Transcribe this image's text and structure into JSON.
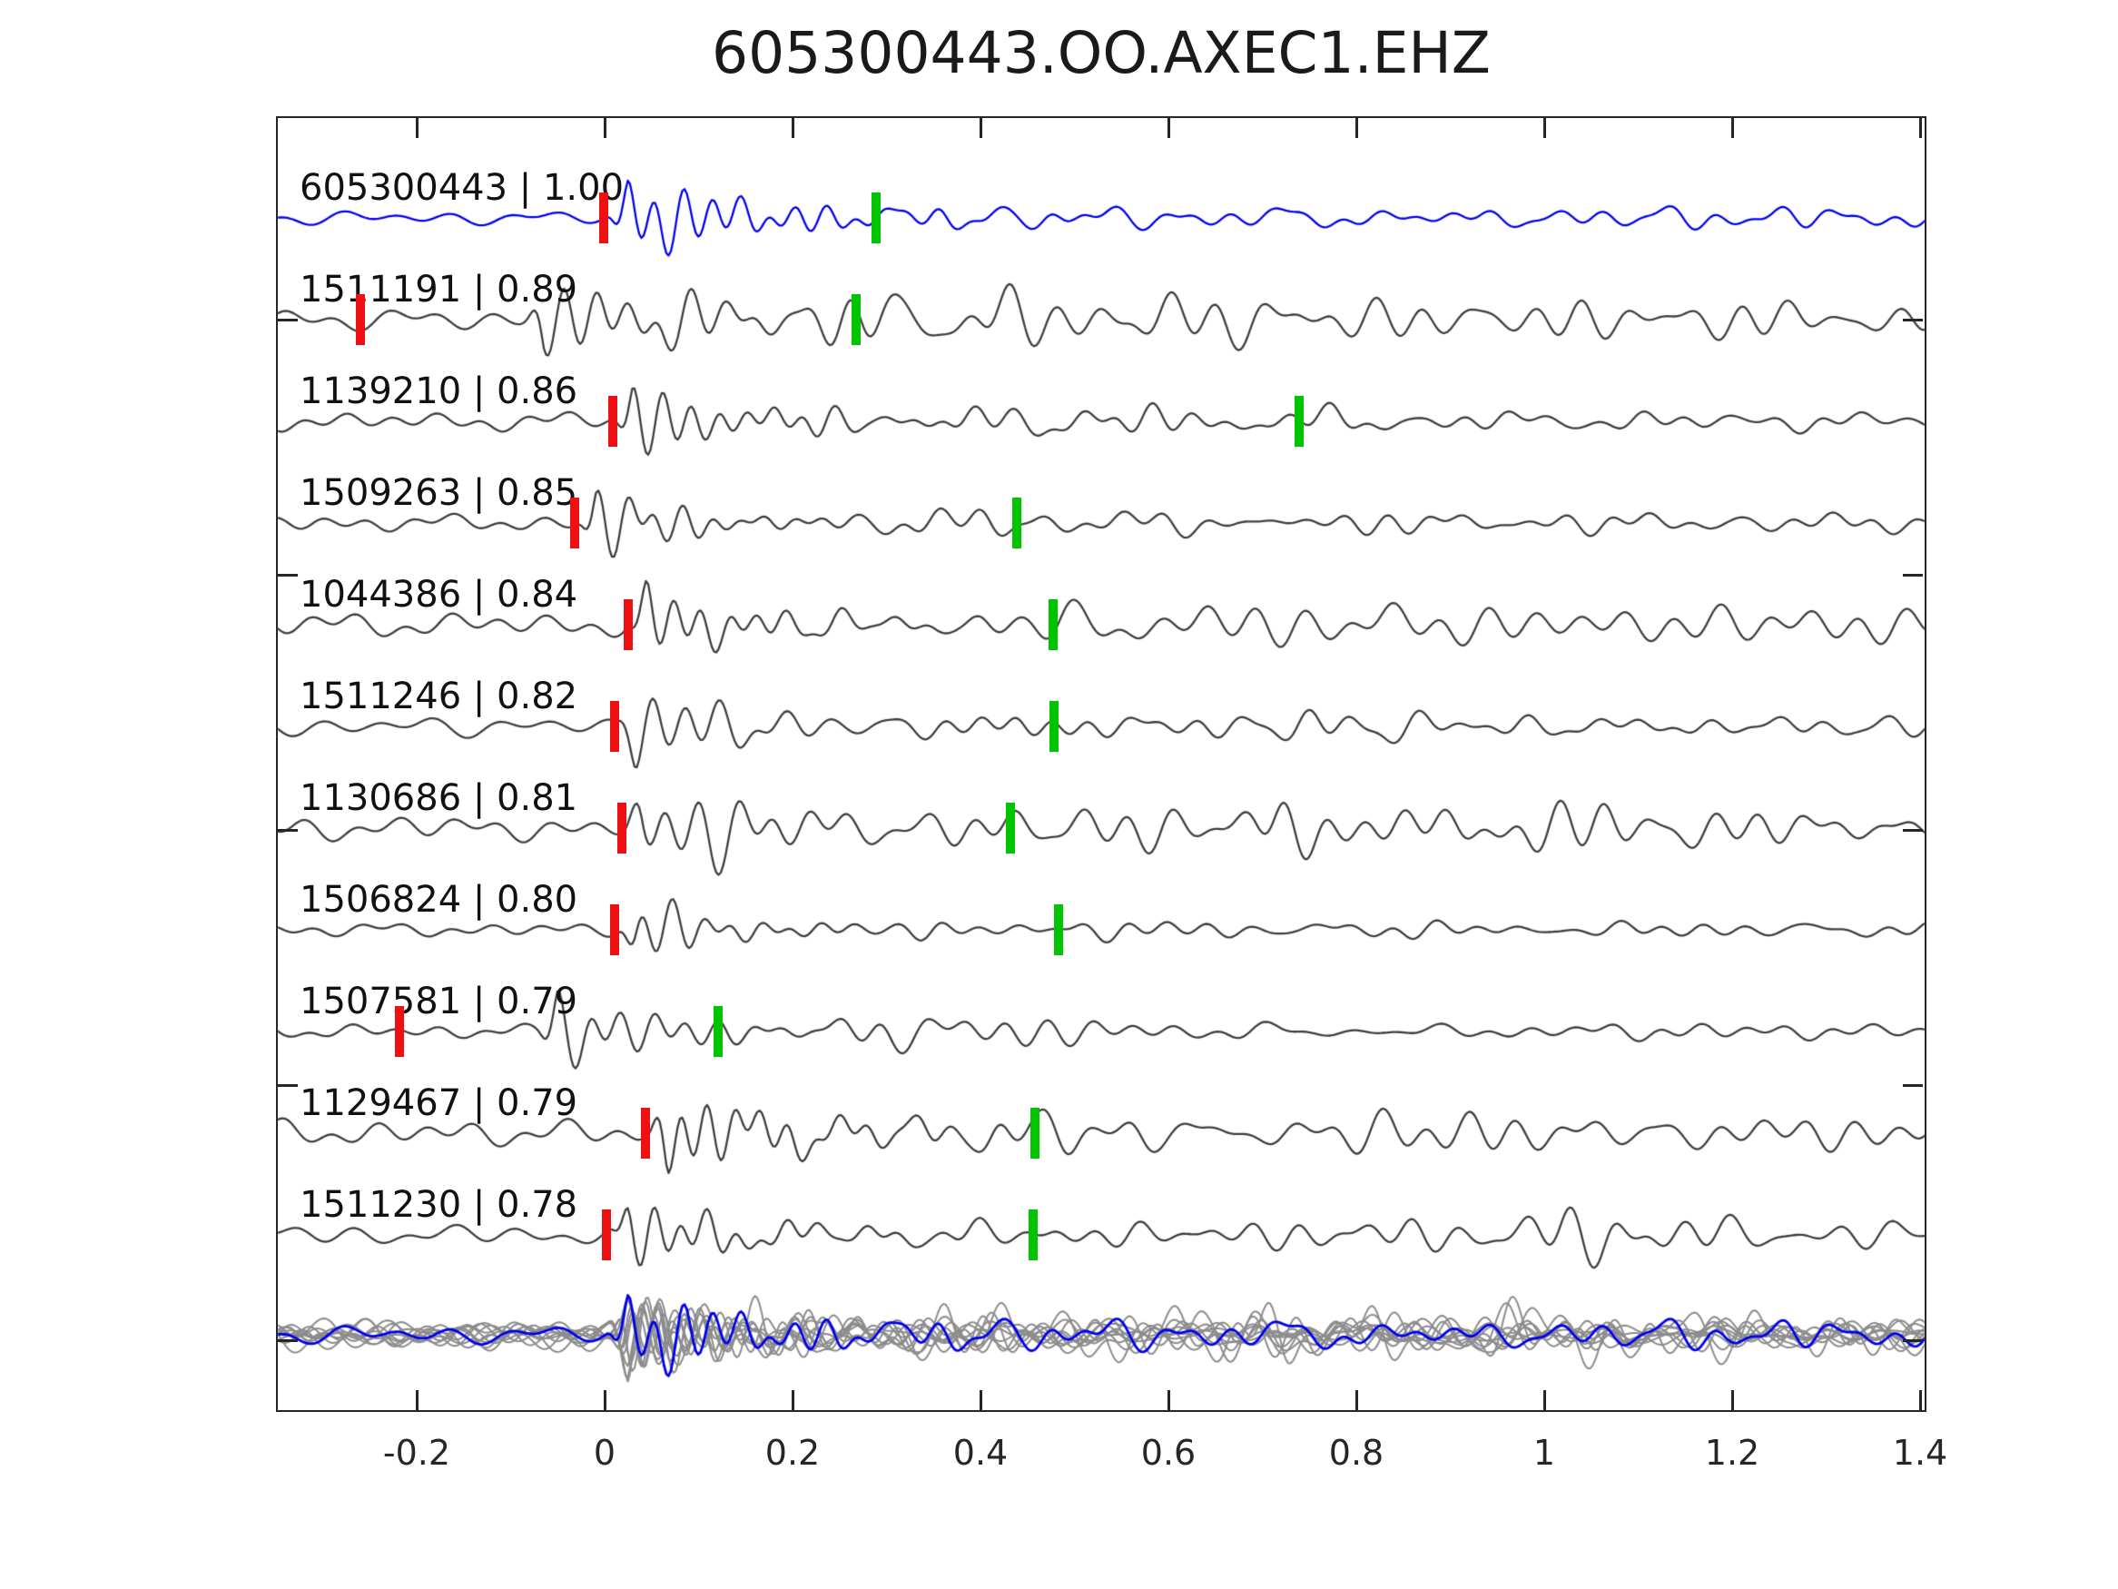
{
  "title": "605300443.OO.AXEC1.EHZ",
  "colors": {
    "reference_blue": "#0000ee",
    "trace_gray": "#3d3d3d",
    "overlay_gray": "#8c8c8c",
    "pick_red": "#ee1111",
    "pick_green": "#00c400",
    "axis": "#262626",
    "background": "#ffffff"
  },
  "chart_data": {
    "type": "line",
    "subtype": "seismic-waveform-stack",
    "title": "605300443.OO.AXEC1.EHZ",
    "xlabel": "",
    "ylabel": "",
    "xlim": [
      -0.35,
      1.407
    ],
    "grid": false,
    "xticks": {
      "values": [
        -0.2,
        0,
        0.2,
        0.4,
        0.6,
        0.8,
        1.0,
        1.2,
        1.4
      ],
      "labels": [
        "-0.2",
        "0",
        "0.2",
        "0.4",
        "0.6",
        "0.8",
        "1",
        "1.2",
        "1.4"
      ]
    },
    "traces": [
      {
        "id": "605300443",
        "correlation": "1.00",
        "label": "605300443 | 1.00",
        "is_reference": true,
        "red_pick": -0.001,
        "green_pick": 0.289,
        "synth": {
          "seed": 7,
          "onset": 0.0,
          "pre": 9,
          "burst": 60,
          "decay": 0.13,
          "coda": 13,
          "freq": 38,
          "late": [
            {
              "c": 1.25,
              "w": 0.18,
              "a": 5
            }
          ]
        }
      },
      {
        "id": "1511191",
        "correlation": "0.89",
        "label": "1511191 | 0.89",
        "is_reference": false,
        "red_pick": -0.26,
        "green_pick": 0.268,
        "synth": {
          "seed": 21,
          "onset": -0.09,
          "pre": 14,
          "burst": 50,
          "decay": 0.17,
          "coda": 28,
          "freq": 30,
          "late": [
            {
              "c": 0.55,
              "w": 0.22,
              "a": 10
            },
            {
              "c": 1.15,
              "w": 0.2,
              "a": 6
            }
          ]
        }
      },
      {
        "id": "1139210",
        "correlation": "0.86",
        "label": "1139210 | 0.86",
        "is_reference": false,
        "red_pick": 0.009,
        "green_pick": 0.739,
        "synth": {
          "seed": 35,
          "onset": 0.005,
          "pre": 12,
          "burst": 54,
          "decay": 0.11,
          "coda": 15,
          "freq": 33,
          "fade": {
            "start": 0.78,
            "factor": 0.45
          },
          "late": [
            {
              "c": 0.55,
              "w": 0.1,
              "a": 8
            }
          ]
        }
      },
      {
        "id": "1509263",
        "correlation": "0.85",
        "label": "1509263 | 0.85",
        "is_reference": false,
        "red_pick": -0.032,
        "green_pick": 0.439,
        "synth": {
          "seed": 42,
          "onset": -0.035,
          "pre": 11,
          "burst": 53,
          "decay": 0.09,
          "coda": 12,
          "freq": 34,
          "late": [
            {
              "c": 0.42,
              "w": 0.05,
              "a": 12
            },
            {
              "c": 0.9,
              "w": 0.1,
              "a": 5
            }
          ]
        }
      },
      {
        "id": "1044386",
        "correlation": "0.84",
        "label": "1044386 | 0.84",
        "is_reference": false,
        "red_pick": 0.025,
        "green_pick": 0.477,
        "synth": {
          "seed": 58,
          "onset": 0.02,
          "pre": 16,
          "burst": 53,
          "decay": 0.1,
          "coda": 22,
          "freq": 32,
          "late": [
            {
              "c": 0.65,
              "w": 0.2,
              "a": 8
            },
            {
              "c": 1.33,
              "w": 0.09,
              "a": 10
            }
          ]
        }
      },
      {
        "id": "1511246",
        "correlation": "0.82",
        "label": "1511246 | 0.82",
        "is_reference": false,
        "red_pick": 0.011,
        "green_pick": 0.478,
        "synth": {
          "seed": 66,
          "onset": 0.008,
          "pre": 13,
          "burst": 53,
          "decay": 0.1,
          "coda": 16,
          "freq": 33,
          "late": [
            {
              "c": 0.44,
              "w": 0.06,
              "a": 10
            },
            {
              "c": 0.78,
              "w": 0.07,
              "a": 7
            }
          ]
        }
      },
      {
        "id": "1130686",
        "correlation": "0.81",
        "label": "1130686 | 0.81",
        "is_reference": false,
        "red_pick": 0.018,
        "green_pick": 0.432,
        "synth": {
          "seed": 77,
          "onset": 0.015,
          "pre": 16,
          "burst": 54,
          "decay": 0.12,
          "coda": 27,
          "freq": 31,
          "late": [
            {
              "c": 0.72,
              "w": 0.045,
              "a": 24
            },
            {
              "c": 1.0,
              "w": 0.22,
              "a": 16
            }
          ]
        }
      },
      {
        "id": "1506824",
        "correlation": "0.80",
        "label": "1506824 | 0.80",
        "is_reference": false,
        "red_pick": 0.011,
        "green_pick": 0.483,
        "synth": {
          "seed": 83,
          "onset": 0.008,
          "pre": 9,
          "burst": 51,
          "decay": 0.085,
          "coda": 10,
          "freq": 34,
          "late": [
            {
              "c": 0.5,
              "w": 0.1,
              "a": 5
            }
          ]
        }
      },
      {
        "id": "1507581",
        "correlation": "0.79",
        "label": "1507581 | 0.79",
        "is_reference": false,
        "red_pick": -0.218,
        "green_pick": 0.121,
        "synth": {
          "seed": 90,
          "onset": -0.075,
          "pre": 9,
          "burst": 54,
          "decay": 0.12,
          "coda": 17,
          "freq": 32,
          "fade": {
            "start": 0.5,
            "factor": 0.4
          },
          "late": [
            {
              "c": 0.38,
              "w": 0.12,
              "a": 7
            }
          ]
        }
      },
      {
        "id": "1129467",
        "correlation": "0.79",
        "label": "1129467 | 0.79",
        "is_reference": false,
        "red_pick": 0.043,
        "green_pick": 0.458,
        "synth": {
          "seed": 104,
          "onset": 0.042,
          "pre": 17,
          "burst": 57,
          "decay": 0.12,
          "coda": 24,
          "freq": 31,
          "late": [
            {
              "c": 1.0,
              "w": 0.2,
              "a": 12
            }
          ]
        }
      },
      {
        "id": "1511230",
        "correlation": "0.78",
        "label": "1511230 | 0.78",
        "is_reference": false,
        "red_pick": 0.002,
        "green_pick": 0.456,
        "synth": {
          "seed": 111,
          "onset": 0.0,
          "pre": 13,
          "burst": 53,
          "decay": 0.1,
          "coda": 18,
          "freq": 32,
          "late": [
            {
              "c": 1.06,
              "w": 0.1,
              "a": 28
            },
            {
              "c": 0.8,
              "w": 0.1,
              "a": 8
            }
          ]
        }
      }
    ],
    "overlay_row": {
      "description": "all traces aligned and superimposed, reference in blue",
      "gray_trace_count": 11,
      "aligned_onset": 0.0,
      "burst_amp": 62
    }
  }
}
